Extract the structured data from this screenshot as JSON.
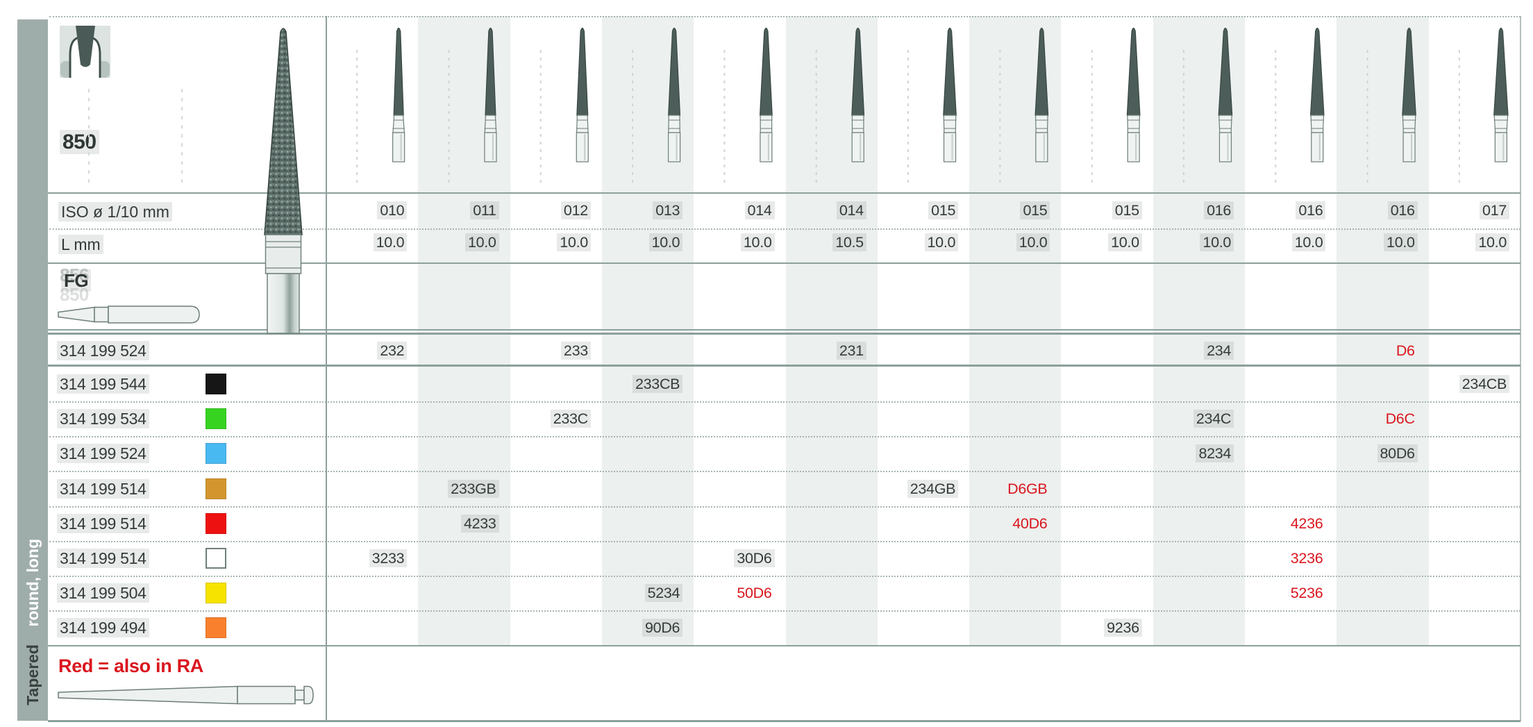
{
  "family_number": "850",
  "sidebar": {
    "group": "Tapered",
    "subgroup": "round, long"
  },
  "labels": {
    "iso": "ISO ø 1/10 mm",
    "length": "L mm"
  },
  "shank": {
    "label": "FG",
    "ghost_top": "856",
    "ghost_bottom": "850"
  },
  "footnote": "Red = also in RA",
  "colors": {
    "red_text": "#da161e",
    "sidebar_bar": "#9fadaa",
    "column_band": "#ecf0ee"
  },
  "columns": [
    {
      "iso": "010",
      "l": "10.0"
    },
    {
      "iso": "011",
      "l": "10.0"
    },
    {
      "iso": "012",
      "l": "10.0"
    },
    {
      "iso": "013",
      "l": "10.0"
    },
    {
      "iso": "014",
      "l": "10.0"
    },
    {
      "iso": "014",
      "l": "10.5"
    },
    {
      "iso": "015",
      "l": "10.0"
    },
    {
      "iso": "015",
      "l": "10.0"
    },
    {
      "iso": "015",
      "l": "10.0"
    },
    {
      "iso": "016",
      "l": "10.0"
    },
    {
      "iso": "016",
      "l": "10.0"
    },
    {
      "iso": "016",
      "l": "10.0"
    },
    {
      "iso": "017",
      "l": "10.0"
    }
  ],
  "rows": [
    {
      "code": "314 199 524",
      "chip": null,
      "cells": [
        {
          "col": 1,
          "v": "232"
        },
        {
          "col": 3,
          "v": "233"
        },
        {
          "col": 6,
          "v": "231"
        },
        {
          "col": 10,
          "v": "234"
        },
        {
          "col": 12,
          "v": "D6",
          "red": true
        }
      ]
    },
    {
      "code": "314 199 544",
      "chip": "#161616",
      "cells": [
        {
          "col": 4,
          "v": "233CB"
        },
        {
          "col": 13,
          "v": "234CB"
        }
      ]
    },
    {
      "code": "314 199 534",
      "chip": "#36d321",
      "cells": [
        {
          "col": 3,
          "v": "233C"
        },
        {
          "col": 10,
          "v": "234C"
        },
        {
          "col": 12,
          "v": "D6C",
          "red": true
        }
      ]
    },
    {
      "code": "314 199 524",
      "chip": "#49b9f2",
      "cells": [
        {
          "col": 10,
          "v": "8234"
        },
        {
          "col": 12,
          "v": "80D6"
        }
      ]
    },
    {
      "code": "314 199 514",
      "chip": "#d3962f",
      "cells": [
        {
          "col": 2,
          "v": "233GB"
        },
        {
          "col": 7,
          "v": "234GB"
        },
        {
          "col": 8,
          "v": "D6GB",
          "red": true
        }
      ]
    },
    {
      "code": "314 199 514",
      "chip": "#ee1111",
      "cells": [
        {
          "col": 2,
          "v": "4233"
        },
        {
          "col": 8,
          "v": "40D6",
          "red": true
        },
        {
          "col": 11,
          "v": "4236",
          "red": true
        }
      ]
    },
    {
      "code": "314 199 514",
      "chip": "#ffffff",
      "cells": [
        {
          "col": 1,
          "v": "3233"
        },
        {
          "col": 5,
          "v": "30D6"
        },
        {
          "col": 11,
          "v": "3236",
          "red": true
        }
      ]
    },
    {
      "code": "314 199 504",
      "chip": "#f6e300",
      "cells": [
        {
          "col": 4,
          "v": "5234"
        },
        {
          "col": 5,
          "v": "50D6",
          "red": true
        },
        {
          "col": 11,
          "v": "5236",
          "red": true
        }
      ]
    },
    {
      "code": "314 199 494",
      "chip": "#f9812d",
      "cells": [
        {
          "col": 4,
          "v": "90D6"
        },
        {
          "col": 9,
          "v": "9236"
        }
      ]
    }
  ]
}
